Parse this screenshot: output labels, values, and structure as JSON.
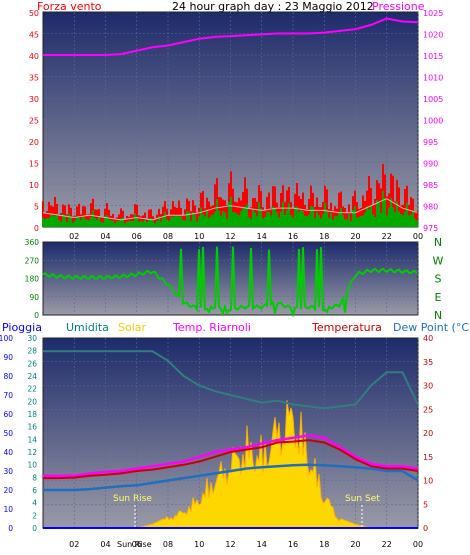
{
  "title": "24 hour graph day : 23 Maggio 2012",
  "colors": {
    "wind": "#ff0000",
    "gust": "#00aa00",
    "wind_avg": "#c0c0c0",
    "pressure": "#ff00ff",
    "winddir": "#00cc00",
    "rain": "#0000ff",
    "humidity": "#2f7f7f",
    "solar": "#ffd700",
    "temp_riarnoli": "#ff00ff",
    "temperature": "#cc0000",
    "dewpoint": "#1f6fbf",
    "axis_rain": "#0000ff",
    "axis_humidity": "#008080",
    "axis_temp": "#cc0000",
    "panel_top": "#1e2b6b",
    "panel_bottom": "#8a8a9a"
  },
  "x_ticks": [
    "02",
    "04",
    "06",
    "08",
    "10",
    "12",
    "14",
    "16",
    "18",
    "20",
    "22",
    "00"
  ],
  "labels": {
    "wind": "Forza vento",
    "pressure": "Pressione",
    "rain": "Pioggia",
    "humidity": "Umidita",
    "solar": "Solar",
    "temp_riarnoli": "Temp. Riarnoli",
    "temperature": "Temperatura",
    "dewpoint": "Dew Point (°C)",
    "sunrise": "Sun Rise",
    "sunset": "Sun Set",
    "sunrise_axis": "Sun Rise"
  },
  "dir_letters": [
    "N",
    "W",
    "S",
    "E",
    "N"
  ],
  "chart_data": [
    {
      "type": "line",
      "panel": "wind_pressure",
      "left_ticks": [
        "50",
        "45",
        "40",
        "35",
        "30",
        "25",
        "20",
        "15",
        "10",
        "5",
        "0"
      ],
      "right_ticks": [
        "1025",
        "1020",
        "1015",
        "1010",
        "1005",
        "1000",
        "995",
        "990",
        "985",
        "980",
        "975"
      ],
      "ylim_left": [
        0,
        50
      ],
      "ylim_right": [
        975,
        1025
      ],
      "x_hours": [
        0,
        1,
        2,
        3,
        4,
        5,
        6,
        7,
        8,
        9,
        10,
        11,
        12,
        13,
        14,
        15,
        16,
        17,
        18,
        19,
        20,
        21,
        22,
        23,
        24
      ],
      "series": [
        {
          "name": "Forza vento",
          "axis": "left",
          "values": [
            6,
            5,
            4,
            5,
            4,
            3,
            4,
            3,
            5,
            5,
            6,
            8,
            9,
            8,
            7,
            8,
            8,
            7,
            7,
            6,
            6,
            9,
            12,
            8,
            6
          ]
        },
        {
          "name": "Pressione",
          "axis": "right",
          "values": [
            1015,
            1015,
            1015,
            1015,
            1015,
            1015.2,
            1016,
            1016.8,
            1017.2,
            1018,
            1018.8,
            1019.2,
            1019.4,
            1019.6,
            1019.8,
            1020,
            1020,
            1020,
            1020.2,
            1020.6,
            1021,
            1022,
            1023.5,
            1022.8,
            1022.6
          ]
        }
      ]
    },
    {
      "type": "line",
      "panel": "wind_direction",
      "left_ticks": [
        "360",
        "270",
        "180",
        "90",
        "0"
      ],
      "ylim": [
        0,
        360
      ],
      "x_hours": [
        0,
        1,
        2,
        3,
        4,
        5,
        6,
        7,
        8,
        9,
        10,
        11,
        12,
        13,
        14,
        15,
        16,
        17,
        18,
        19,
        20,
        21,
        22,
        23,
        24
      ],
      "series": [
        {
          "name": "Direzione",
          "values": [
            200,
            190,
            185,
            185,
            185,
            190,
            200,
            215,
            150,
            60,
            30,
            40,
            30,
            40,
            40,
            60,
            30,
            40,
            30,
            50,
            200,
            220,
            220,
            215,
            210
          ]
        }
      ]
    },
    {
      "type": "line",
      "panel": "temperature",
      "rain_ticks": [
        "100",
        "90",
        "80",
        "70",
        "60",
        "50",
        "40",
        "30",
        "20",
        "10",
        "0"
      ],
      "humidity_ticks": [
        "30",
        "28",
        "26",
        "24",
        "22",
        "20",
        "18",
        "16",
        "14",
        "12",
        "10",
        "8",
        "6",
        "4",
        "2",
        "0"
      ],
      "temp_ticks": [
        "40",
        "35",
        "30",
        "25",
        "20",
        "15",
        "10",
        "5",
        "0"
      ],
      "ylim_temp": [
        0,
        40
      ],
      "x_hours": [
        0,
        1,
        2,
        3,
        4,
        5,
        6,
        7,
        8,
        9,
        10,
        11,
        12,
        13,
        14,
        15,
        16,
        17,
        18,
        19,
        20,
        21,
        22,
        23,
        24
      ],
      "series": [
        {
          "name": "Umidita",
          "values": [
            93,
            93,
            93,
            93,
            93,
            93,
            93,
            93,
            88,
            80,
            75,
            72,
            70,
            68,
            66,
            67,
            65,
            64,
            63,
            64,
            65,
            75,
            82,
            82,
            65
          ]
        },
        {
          "name": "Temp. Riarnoli",
          "values": [
            11,
            11,
            11,
            11.5,
            11.8,
            12,
            12.5,
            13,
            13.5,
            14,
            15,
            16,
            16.5,
            17,
            17.8,
            18.5,
            19,
            19.5,
            19,
            17,
            15,
            13.5,
            13,
            13,
            12.5
          ]
        },
        {
          "name": "Temperatura",
          "values": [
            10.5,
            10.5,
            10.6,
            11,
            11.2,
            11.5,
            12,
            12.3,
            12.8,
            13.3,
            14,
            15,
            16,
            16.5,
            17,
            18,
            18.2,
            18.5,
            18,
            16.5,
            14.5,
            13,
            12.5,
            12.5,
            12
          ]
        },
        {
          "name": "Dew Point (°C)",
          "values": [
            8,
            8,
            8,
            8.2,
            8.5,
            8.8,
            9,
            9.5,
            10,
            10.5,
            11,
            11.5,
            12,
            12.5,
            12.8,
            13,
            13.2,
            13.3,
            13.2,
            13,
            12.8,
            12.5,
            12,
            12,
            10
          ]
        },
        {
          "name": "Solar",
          "values": [
            0,
            0,
            0,
            0,
            0,
            0,
            0,
            2,
            6,
            10,
            18,
            30,
            40,
            50,
            45,
            60,
            70,
            45,
            20,
            5,
            2,
            0,
            0,
            0,
            0
          ]
        },
        {
          "name": "Pioggia",
          "values": [
            0,
            0,
            0,
            0,
            0,
            0,
            0,
            0,
            0,
            0,
            0,
            0,
            0,
            0,
            0,
            0,
            0,
            0,
            0,
            0,
            0,
            0,
            0,
            0,
            0
          ]
        }
      ]
    }
  ]
}
